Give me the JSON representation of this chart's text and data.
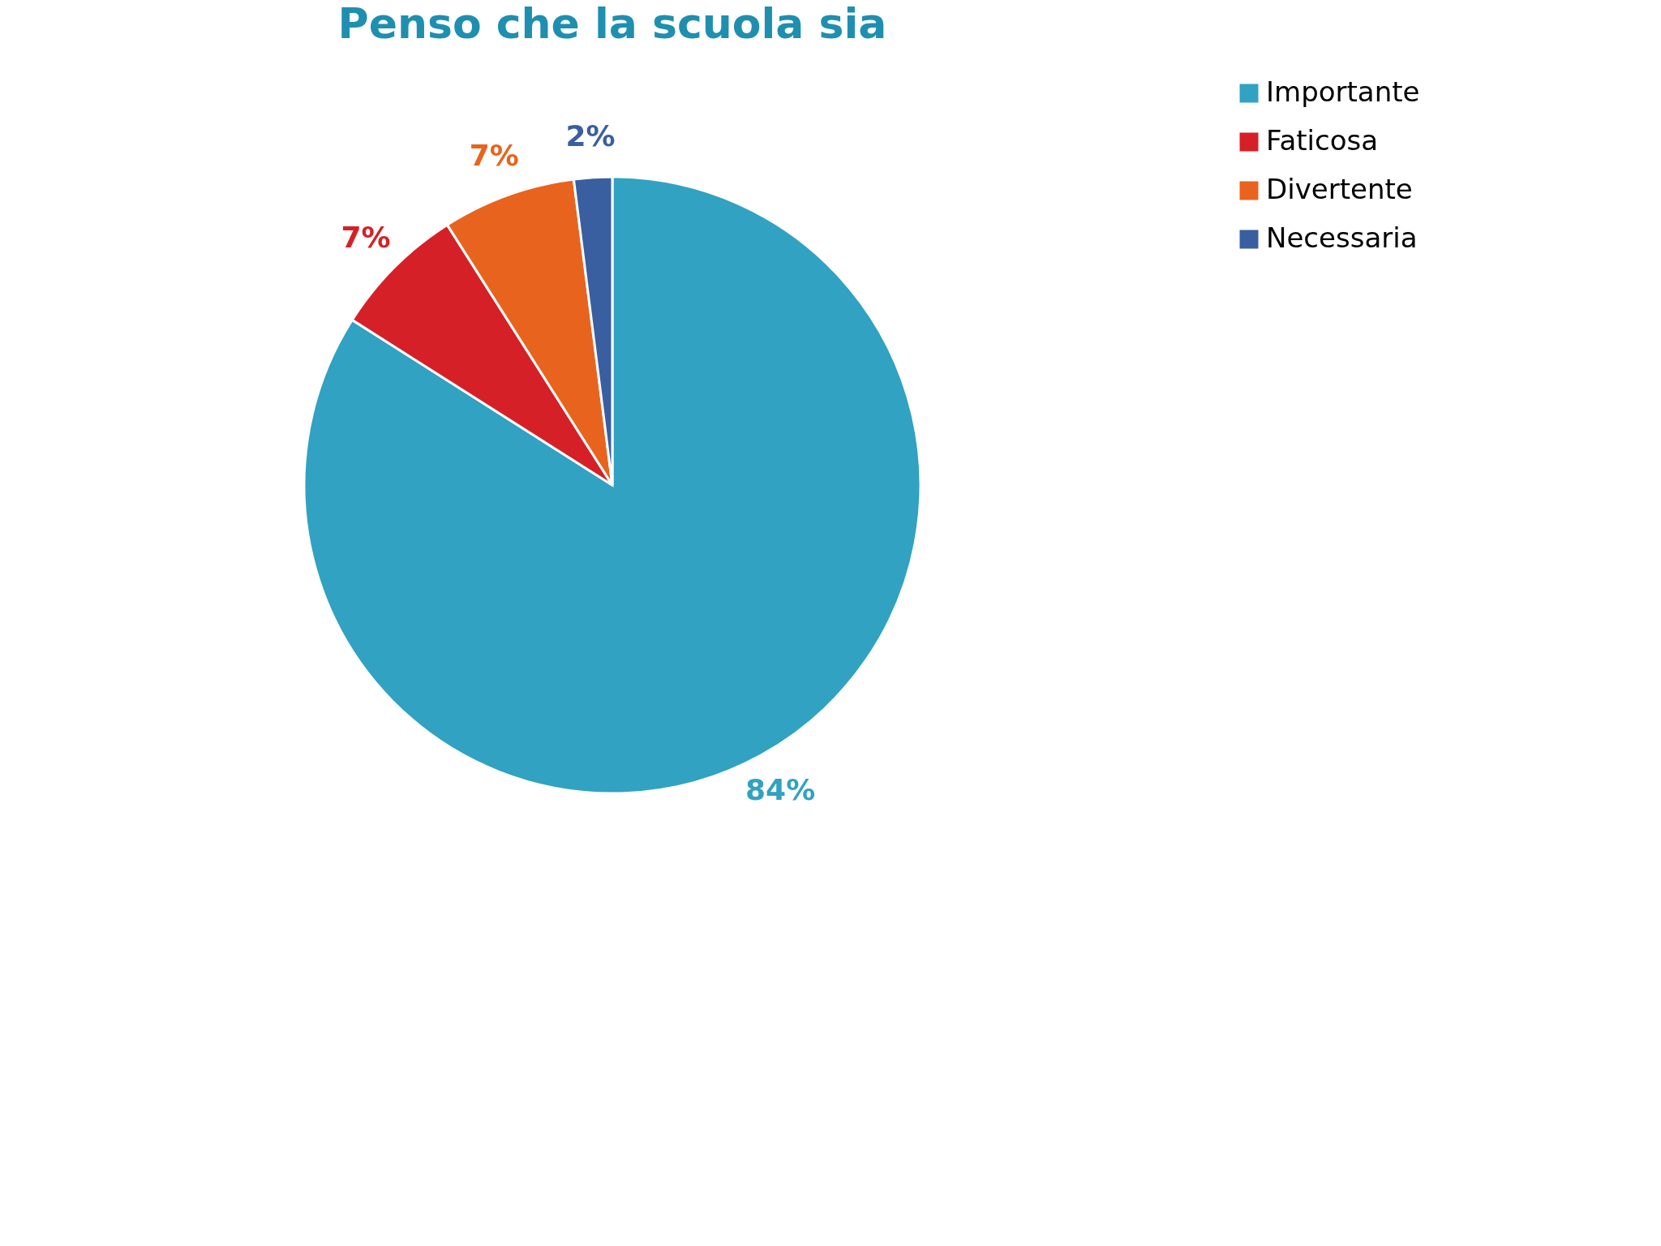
{
  "chart_data": {
    "type": "pie",
    "title": "Penso che la scuola sia",
    "categories": [
      "Importante",
      "Faticosa",
      "Divertente",
      "Necessaria"
    ],
    "values": [
      84,
      7,
      7,
      2
    ],
    "value_labels": [
      "84%",
      "7%",
      "7%",
      "2%"
    ],
    "colors": [
      "#31a2c1",
      "#d62028",
      "#e8641e",
      "#3a5fa0"
    ],
    "legend": "right"
  }
}
